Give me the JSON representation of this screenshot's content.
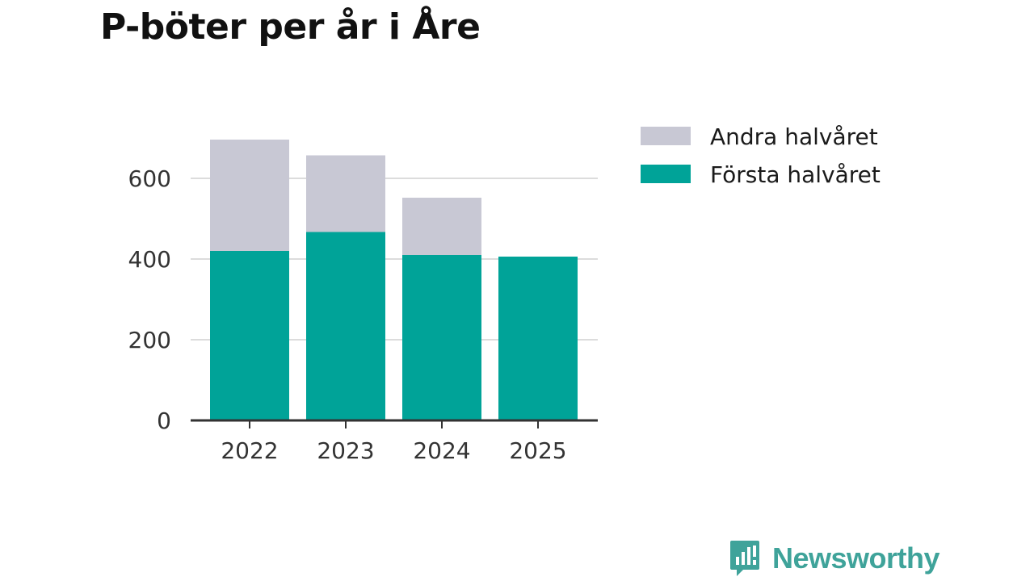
{
  "chart_data": {
    "type": "bar",
    "stacked": true,
    "title": "P-böter per år i Åre",
    "categories": [
      "2022",
      "2023",
      "2024",
      "2025"
    ],
    "series": [
      {
        "name": "Första halvåret",
        "values": [
          420,
          467,
          410,
          406
        ],
        "color": "#00a398"
      },
      {
        "name": "Andra halvåret",
        "values": [
          276,
          190,
          142,
          0
        ],
        "color": "#c8c8d4"
      }
    ],
    "yticks": [
      0,
      200,
      400,
      600
    ],
    "ylim": [
      0,
      720
    ],
    "legend_order": [
      "Andra halvåret",
      "Första halvåret"
    ],
    "legend_position": "right",
    "grid": true,
    "xlabel": "",
    "ylabel": ""
  },
  "branding": {
    "name": "Newsworthy",
    "icon": "newsworthy-logo-icon",
    "color": "#3fa39a"
  }
}
